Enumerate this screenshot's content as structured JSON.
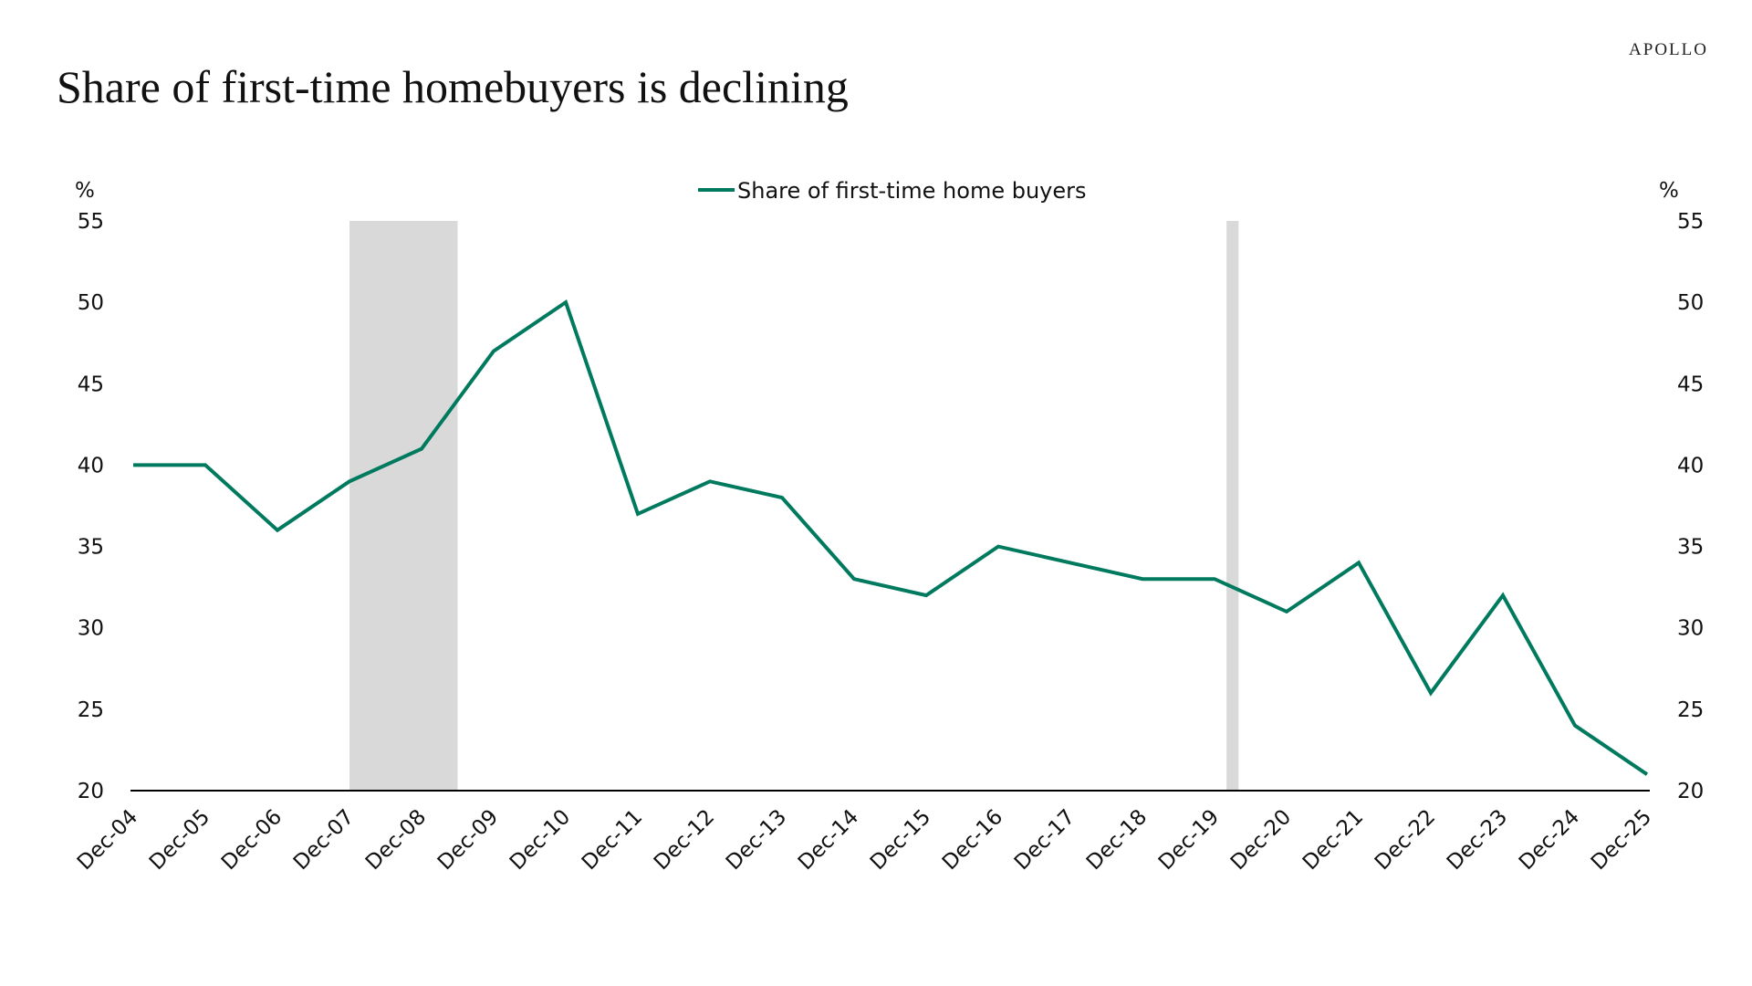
{
  "brand": "APOLLO",
  "colors": {
    "series": "#007a5e",
    "recession": "#d9d9d9",
    "axis": "#000000"
  },
  "chart_data": {
    "type": "line",
    "title": "Share of  first-time homebuyers is declining",
    "y_unit_left": "%",
    "y_unit_right": "%",
    "ylim": [
      20,
      55
    ],
    "yticks": [
      20,
      25,
      30,
      35,
      40,
      45,
      50,
      55
    ],
    "grid": false,
    "legend_position": "top-center",
    "categories": [
      "Dec-04",
      "Dec-05",
      "Dec-06",
      "Dec-07",
      "Dec-08",
      "Dec-09",
      "Dec-10",
      "Dec-11",
      "Dec-12",
      "Dec-13",
      "Dec-14",
      "Dec-15",
      "Dec-16",
      "Dec-17",
      "Dec-18",
      "Dec-19",
      "Dec-20",
      "Dec-21",
      "Dec-22",
      "Dec-23",
      "Dec-24",
      "Dec-25"
    ],
    "series": [
      {
        "name": "Share of first-time home buyers",
        "values": [
          40,
          40,
          36,
          39,
          41,
          47,
          50,
          37,
          39,
          38,
          33,
          32,
          35,
          34,
          33,
          33,
          31,
          34,
          26,
          32,
          24,
          21
        ]
      }
    ],
    "recession_shading": [
      {
        "start": "Dec-07",
        "end": "Jun-09"
      },
      {
        "start": "Feb-20",
        "end": "Apr-20"
      }
    ]
  }
}
